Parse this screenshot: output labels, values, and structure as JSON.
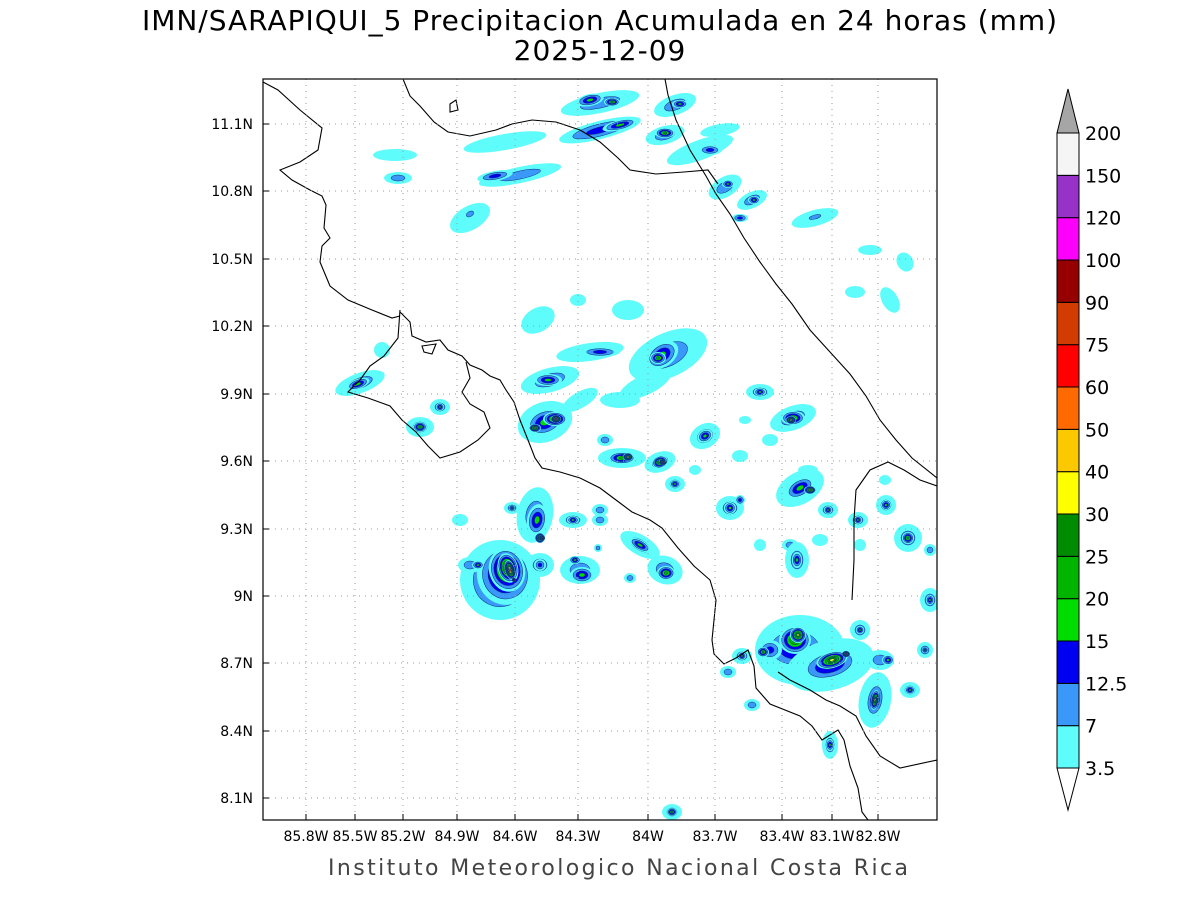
{
  "title": "IMN/SARAPIQUI_5 Precipitacion Acumulada en 24 horas (mm)",
  "date": "2025-12-09",
  "footer": "Instituto Meteorologico Nacional Costa Rica",
  "x_ticks": [
    "85.8W",
    "85.5W",
    "85.2W",
    "84.9W",
    "84.6W",
    "84.3W",
    "84W",
    "83.7W",
    "83.4W",
    "83.1W",
    "82.8W"
  ],
  "y_ticks": [
    "11.1N",
    "10.8N",
    "10.5N",
    "10.2N",
    "9.9N",
    "9.6N",
    "9.3N",
    "9N",
    "8.7N",
    "8.4N",
    "8.1N"
  ],
  "colorbar": {
    "labels": [
      "3.5",
      "7",
      "12.5",
      "15",
      "20",
      "25",
      "30",
      "40",
      "50",
      "60",
      "75",
      "90",
      "100",
      "120",
      "150",
      "200"
    ],
    "colors": [
      "#5ffcfc",
      "#3a98f9",
      "#0000f0",
      "#00dc00",
      "#00b400",
      "#008c00",
      "#ffff00",
      "#fcc800",
      "#ff6a00",
      "#ff0000",
      "#d23c00",
      "#960000",
      "#fc00fc",
      "#9632c8",
      "#f5f5f5",
      "#a6a6a6"
    ]
  }
}
